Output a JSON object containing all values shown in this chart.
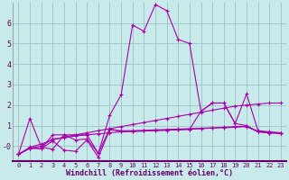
{
  "background_color": "#c8eaea",
  "grid_color": "#a0c8c8",
  "line_color": "#aa00aa",
  "xlabel": "Windchill (Refroidissement éolien,°C)",
  "xlim": [
    -0.5,
    23.5
  ],
  "ylim": [
    -0.75,
    7.0
  ],
  "yticks": [
    0,
    1,
    2,
    3,
    4,
    5,
    6
  ],
  "ytick_labels": [
    "-0",
    "1",
    "2",
    "3",
    "4",
    "5",
    "6"
  ],
  "xticks": [
    0,
    1,
    2,
    3,
    4,
    5,
    6,
    7,
    8,
    9,
    10,
    11,
    12,
    13,
    14,
    15,
    16,
    17,
    18,
    19,
    20,
    21,
    22,
    23
  ],
  "series": [
    {
      "x": [
        0,
        1,
        2,
        3,
        4,
        5,
        6,
        7,
        8,
        9,
        10,
        11,
        12,
        13,
        14,
        15,
        16,
        17,
        18,
        19,
        20,
        21,
        22,
        23
      ],
      "y": [
        -0.4,
        1.35,
        -0.05,
        -0.15,
        0.55,
        0.3,
        0.35,
        -0.35,
        1.5,
        2.5,
        5.9,
        5.6,
        6.9,
        6.6,
        5.2,
        5.0,
        1.7,
        2.1,
        2.1,
        1.1,
        2.55,
        0.75,
        0.7,
        0.65
      ]
    },
    {
      "x": [
        0,
        1,
        2,
        3,
        4,
        5,
        6,
        7,
        8,
        9,
        10,
        11,
        12,
        13,
        14,
        15,
        16,
        17,
        18,
        19,
        20,
        21,
        22,
        23
      ],
      "y": [
        -0.4,
        -0.05,
        0.1,
        0.3,
        0.45,
        0.55,
        0.65,
        0.75,
        0.85,
        0.95,
        1.05,
        1.15,
        1.25,
        1.35,
        1.45,
        1.55,
        1.65,
        1.75,
        1.85,
        1.95,
        2.0,
        2.05,
        2.1,
        2.1
      ]
    },
    {
      "x": [
        0,
        1,
        2,
        3,
        4,
        5,
        6,
        7,
        8,
        9,
        10,
        11,
        12,
        13,
        14,
        15,
        16,
        17,
        18,
        19,
        20,
        21,
        22,
        23
      ],
      "y": [
        -0.4,
        -0.1,
        0.0,
        0.35,
        0.4,
        0.5,
        0.55,
        0.6,
        0.65,
        0.7,
        0.72,
        0.74,
        0.76,
        0.78,
        0.8,
        0.82,
        0.85,
        0.88,
        0.9,
        0.92,
        0.95,
        0.7,
        0.65,
        0.65
      ]
    },
    {
      "x": [
        0,
        1,
        2,
        3,
        4,
        5,
        6,
        7,
        8,
        9,
        10,
        11,
        12,
        13,
        14,
        15,
        16,
        17,
        18,
        19,
        20,
        21,
        22,
        23
      ],
      "y": [
        -0.4,
        -0.1,
        -0.12,
        0.55,
        0.55,
        0.55,
        0.55,
        -0.35,
        0.85,
        0.7,
        0.72,
        0.74,
        0.76,
        0.78,
        0.8,
        0.82,
        1.7,
        2.1,
        2.1,
        1.1,
        1.0,
        0.7,
        0.65,
        0.62
      ]
    },
    {
      "x": [
        0,
        1,
        2,
        3,
        4,
        5,
        6,
        7,
        8,
        9,
        10,
        11,
        12,
        13,
        14,
        15,
        16,
        17,
        18,
        19,
        20,
        21,
        22,
        23
      ],
      "y": [
        -0.4,
        -0.1,
        -0.12,
        0.25,
        -0.2,
        -0.25,
        0.3,
        -0.55,
        0.8,
        0.75,
        0.75,
        0.77,
        0.79,
        0.81,
        0.83,
        0.85,
        0.87,
        0.89,
        0.92,
        0.95,
        0.97,
        0.72,
        0.65,
        0.62
      ]
    }
  ]
}
